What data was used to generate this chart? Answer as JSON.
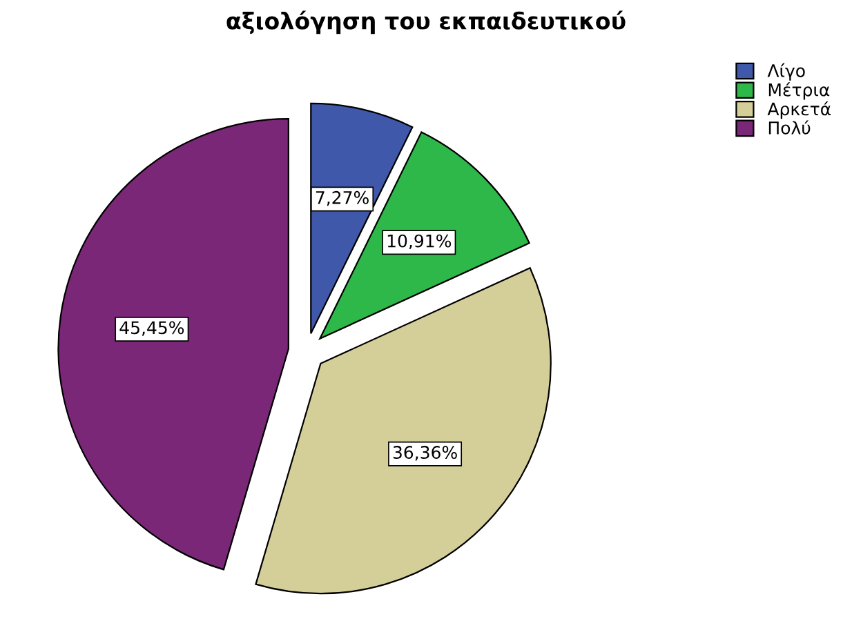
{
  "chart_data": {
    "type": "pie",
    "title": "αξιολόγηση του εκπαιδευτικού",
    "categories": [
      "Λίγο",
      "Μέτρια",
      "Αρκετά",
      "Πολύ"
    ],
    "values": [
      7.27,
      10.91,
      36.36,
      45.45
    ],
    "colors": [
      "#3f58aa",
      "#2fb84a",
      "#d4cf98",
      "#7a2777"
    ],
    "value_labels": [
      "7,27%",
      "10,91%",
      "36,36%",
      "45,45%"
    ],
    "legend": "top right"
  }
}
